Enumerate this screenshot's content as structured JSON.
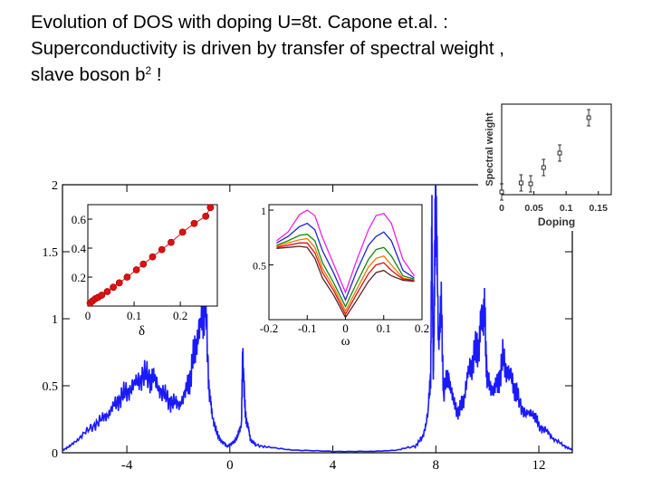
{
  "slide": {
    "title_line1": "Evolution of DOS with doping U=8t. Capone et.al. :",
    "title_line2": "Superconductivity is driven by transfer of spectral weight ,",
    "title_line3_prefix": "slave boson  b",
    "title_line3_sup": "2",
    "title_line3_suffix": "  !"
  },
  "chart_data": [
    {
      "type": "line",
      "title": "",
      "xlabel": "",
      "ylabel": "",
      "xlim": [
        -6.5,
        13.3
      ],
      "ylim": [
        0,
        2
      ],
      "x_ticks": [
        -4,
        0,
        4,
        8,
        12
      ],
      "y_ticks": [
        0,
        0.5,
        1,
        1.5,
        2
      ],
      "x_tick_labels": [
        "-4",
        "0",
        "4",
        "8",
        "12"
      ],
      "y_tick_labels": [
        "0",
        "0.5",
        "1",
        "1.5",
        "2"
      ],
      "series_color": "#1a1aff",
      "x": [
        -6.5,
        -6.2,
        -5.8,
        -5.3,
        -4.9,
        -4.6,
        -4.3,
        -4.0,
        -3.7,
        -3.4,
        -3.1,
        -2.9,
        -2.6,
        -2.3,
        -2.0,
        -1.7,
        -1.5,
        -1.3,
        -1.1,
        -0.95,
        -0.8,
        -0.7,
        -0.5,
        -0.3,
        -0.1,
        0.1,
        0.3,
        0.45,
        0.5,
        0.6,
        0.7,
        0.8,
        1.0,
        1.5,
        2.5,
        4.0,
        5.5,
        6.5,
        7.2,
        7.5,
        7.7,
        7.8,
        7.85,
        7.9,
        7.95,
        8.0,
        8.1,
        8.2,
        8.3,
        8.5,
        8.7,
        8.9,
        9.1,
        9.3,
        9.5,
        9.7,
        9.8,
        9.9,
        10.0,
        10.2,
        10.4,
        10.6,
        10.8,
        11.0,
        11.2,
        11.5,
        11.8,
        12.0,
        12.3,
        12.6,
        13.0,
        13.3
      ],
      "y": [
        0.02,
        0.05,
        0.12,
        0.2,
        0.26,
        0.32,
        0.4,
        0.46,
        0.5,
        0.58,
        0.56,
        0.54,
        0.44,
        0.38,
        0.36,
        0.45,
        0.6,
        0.85,
        0.95,
        1.15,
        0.45,
        0.3,
        0.14,
        0.08,
        0.05,
        0.07,
        0.12,
        0.22,
        0.75,
        0.28,
        0.2,
        0.1,
        0.06,
        0.04,
        0.02,
        0.01,
        0.01,
        0.02,
        0.05,
        0.12,
        0.3,
        0.6,
        1.75,
        0.5,
        1.3,
        1.95,
        0.8,
        1.15,
        0.45,
        0.58,
        0.36,
        0.3,
        0.42,
        0.62,
        0.72,
        0.85,
        1.05,
        1.02,
        0.52,
        0.48,
        0.5,
        0.7,
        0.6,
        0.52,
        0.4,
        0.28,
        0.3,
        0.2,
        0.16,
        0.1,
        0.05,
        0.02
      ]
    },
    {
      "type": "scatter",
      "title": "",
      "xlabel": "δ",
      "ylabel": "",
      "xlim": [
        0,
        0.28
      ],
      "ylim": [
        0,
        0.7
      ],
      "x_ticks": [
        0,
        0.1,
        0.2
      ],
      "y_ticks": [
        0.2,
        0.4,
        0.6
      ],
      "x_tick_labels": [
        "0",
        "0.1",
        "0.2"
      ],
      "y_tick_labels": [
        "0.2",
        "0.4",
        "0.6"
      ],
      "series_color": "#dd1111",
      "x": [
        0.005,
        0.01,
        0.016,
        0.022,
        0.03,
        0.042,
        0.055,
        0.068,
        0.085,
        0.105,
        0.12,
        0.14,
        0.16,
        0.18,
        0.205,
        0.23,
        0.255,
        0.265
      ],
      "y": [
        0.02,
        0.035,
        0.05,
        0.06,
        0.075,
        0.1,
        0.13,
        0.16,
        0.2,
        0.25,
        0.29,
        0.34,
        0.39,
        0.44,
        0.51,
        0.57,
        0.62,
        0.68
      ]
    },
    {
      "type": "line",
      "title": "",
      "xlabel": "ω",
      "ylabel": "",
      "xlim": [
        -0.2,
        0.2
      ],
      "ylim": [
        0,
        1.05
      ],
      "x_ticks": [
        -0.2,
        -0.1,
        0,
        0.1,
        0.2
      ],
      "y_ticks": [
        0.5,
        1
      ],
      "x_tick_labels": [
        "-0.2",
        "-0.1",
        "0",
        "0.1",
        "0.2"
      ],
      "y_tick_labels": [
        "0.5",
        "1"
      ],
      "x": [
        -0.18,
        -0.15,
        -0.12,
        -0.1,
        -0.08,
        -0.06,
        -0.03,
        0.0,
        0.03,
        0.06,
        0.08,
        0.1,
        0.12,
        0.15,
        0.18
      ],
      "series": [
        {
          "color": "#ee22ee",
          "values": [
            0.72,
            0.8,
            0.96,
            1.0,
            0.95,
            0.75,
            0.5,
            0.25,
            0.55,
            0.82,
            0.95,
            0.97,
            0.88,
            0.55,
            0.4
          ]
        },
        {
          "color": "#2222cc",
          "values": [
            0.7,
            0.76,
            0.85,
            0.88,
            0.82,
            0.63,
            0.42,
            0.18,
            0.45,
            0.68,
            0.76,
            0.8,
            0.72,
            0.45,
            0.38
          ]
        },
        {
          "color": "#118811",
          "values": [
            0.68,
            0.72,
            0.77,
            0.78,
            0.72,
            0.52,
            0.33,
            0.12,
            0.34,
            0.55,
            0.64,
            0.66,
            0.58,
            0.4,
            0.37
          ]
        },
        {
          "color": "#ee7700",
          "values": [
            0.67,
            0.7,
            0.73,
            0.74,
            0.66,
            0.47,
            0.29,
            0.08,
            0.28,
            0.48,
            0.56,
            0.58,
            0.5,
            0.38,
            0.36
          ]
        },
        {
          "color": "#dd1111",
          "values": [
            0.66,
            0.68,
            0.7,
            0.7,
            0.61,
            0.43,
            0.26,
            0.05,
            0.24,
            0.42,
            0.5,
            0.52,
            0.45,
            0.37,
            0.36
          ]
        },
        {
          "color": "#552222",
          "values": [
            0.65,
            0.66,
            0.67,
            0.66,
            0.56,
            0.38,
            0.22,
            0.02,
            0.18,
            0.35,
            0.43,
            0.45,
            0.4,
            0.36,
            0.35
          ]
        }
      ]
    },
    {
      "type": "scatter",
      "title": "",
      "xlabel": "Doping",
      "ylabel": "Spectral weight",
      "xlim": [
        0,
        0.17
      ],
      "ylim": [
        0,
        1
      ],
      "x_ticks": [
        0,
        0.05,
        0.1,
        0.15
      ],
      "x_tick_labels": [
        "0",
        "0.05",
        "0.1",
        "0.15"
      ],
      "series_color": "#000000",
      "x": [
        0.0,
        0.03,
        0.045,
        0.065,
        0.09,
        0.135
      ],
      "y": [
        0.03,
        0.13,
        0.12,
        0.3,
        0.46,
        0.85
      ]
    }
  ]
}
